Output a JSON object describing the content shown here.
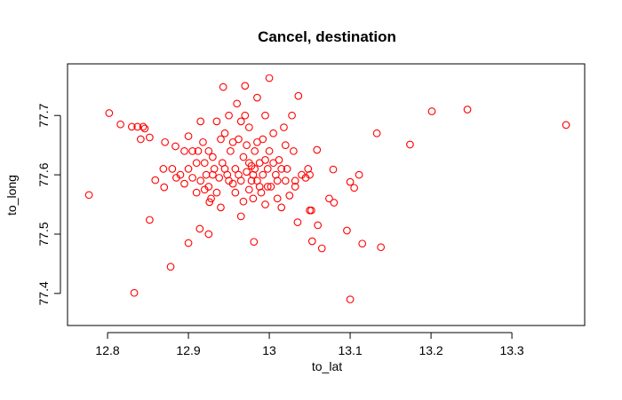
{
  "chart_data": {
    "type": "scatter",
    "title": "Cancel, destination",
    "x_label": "to_lat",
    "y_label": "to_long",
    "color": "#ff0000",
    "xlim": [
      12.7505,
      13.39
    ],
    "ylim": [
      77.346,
      77.787
    ],
    "xticks": [
      12.8,
      12.9,
      13.0,
      13.1,
      13.2,
      13.3
    ],
    "yticks": [
      77.4,
      77.5,
      77.6,
      77.7
    ],
    "x": [
      12.777,
      12.802,
      12.816,
      12.83,
      12.837,
      12.844,
      12.846,
      12.841,
      12.852,
      12.833,
      12.852,
      12.878,
      12.859,
      12.87,
      12.869,
      12.871,
      12.884,
      12.9,
      12.914,
      12.925,
      12.943,
      12.926,
      12.981,
      13.036,
      13.0,
      13.1,
      13.138,
      13.115,
      13.096,
      13.065,
      13.06,
      13.053,
      13.133,
      13.174,
      13.201,
      13.245,
      13.367,
      13.111,
      13.105,
      13.1,
      13.079,
      13.074,
      13.08,
      13.059,
      13.052,
      13.05,
      13.032,
      12.89,
      12.895,
      12.9,
      12.905,
      12.91,
      12.912,
      12.915,
      12.918,
      12.92,
      12.922,
      12.925,
      12.928,
      12.93,
      12.932,
      12.935,
      12.938,
      12.94,
      12.942,
      12.945,
      12.948,
      12.95,
      12.952,
      12.955,
      12.958,
      12.96,
      12.962,
      12.965,
      12.965,
      12.968,
      12.97,
      12.97,
      12.972,
      12.975,
      12.975,
      12.978,
      12.98,
      12.98,
      12.982,
      12.985,
      12.985,
      12.988,
      12.99,
      12.992,
      12.995,
      12.995,
      12.998,
      13.0,
      13.002,
      13.005,
      13.008,
      13.01,
      13.012,
      13.015,
      13.018,
      13.02,
      13.022,
      13.025,
      13.028,
      13.03,
      13.032,
      13.035,
      13.04,
      13.045,
      13.048,
      13.05,
      12.9,
      12.905,
      12.91,
      12.915,
      12.92,
      12.925,
      12.93,
      12.935,
      12.94,
      12.945,
      12.95,
      12.955,
      12.958,
      12.962,
      12.965,
      12.968,
      12.972,
      12.975,
      12.978,
      12.982,
      12.985,
      12.988,
      12.992,
      12.995,
      12.998,
      13.005,
      13.01,
      13.015,
      13.02,
      12.895,
      12.885,
      12.88
    ],
    "y": [
      77.566,
      77.704,
      77.685,
      77.681,
      77.681,
      77.681,
      77.678,
      77.66,
      77.663,
      77.401,
      77.524,
      77.445,
      77.591,
      77.579,
      77.61,
      77.655,
      77.648,
      77.485,
      77.509,
      77.5,
      77.748,
      77.554,
      77.487,
      77.733,
      77.763,
      77.39,
      77.478,
      77.484,
      77.506,
      77.476,
      77.515,
      77.488,
      77.67,
      77.651,
      77.707,
      77.71,
      77.684,
      77.6,
      77.578,
      77.588,
      77.609,
      77.56,
      77.553,
      77.642,
      77.54,
      77.6,
      77.58,
      77.6,
      77.585,
      77.61,
      77.595,
      77.57,
      77.64,
      77.69,
      77.655,
      77.62,
      77.6,
      77.58,
      77.56,
      77.63,
      77.61,
      77.69,
      77.595,
      77.545,
      77.62,
      77.67,
      77.6,
      77.7,
      77.64,
      77.585,
      77.61,
      77.72,
      77.66,
      77.53,
      77.59,
      77.63,
      77.75,
      77.7,
      77.605,
      77.575,
      77.68,
      77.615,
      77.6,
      77.56,
      77.64,
      77.73,
      77.59,
      77.62,
      77.57,
      77.66,
      77.55,
      77.7,
      77.61,
      77.64,
      77.58,
      77.67,
      77.6,
      77.56,
      77.625,
      77.545,
      77.68,
      77.59,
      77.61,
      77.565,
      77.7,
      77.64,
      77.59,
      77.52,
      77.6,
      77.595,
      77.61,
      77.54,
      77.665,
      77.64,
      77.62,
      77.59,
      77.575,
      77.64,
      77.6,
      77.57,
      77.66,
      77.61,
      77.59,
      77.655,
      77.57,
      77.6,
      77.69,
      77.555,
      77.65,
      77.62,
      77.59,
      77.61,
      77.655,
      77.58,
      77.6,
      77.625,
      77.58,
      77.62,
      77.59,
      77.61,
      77.65,
      77.64,
      77.595,
      77.61
    ]
  }
}
